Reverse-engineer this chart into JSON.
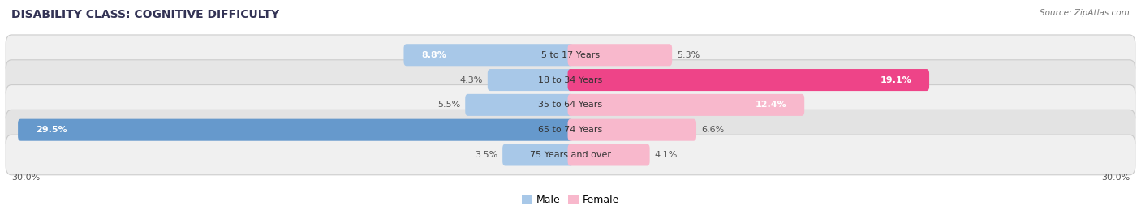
{
  "title": "DISABILITY CLASS: COGNITIVE DIFFICULTY",
  "source": "Source: ZipAtlas.com",
  "categories": [
    "5 to 17 Years",
    "18 to 34 Years",
    "35 to 64 Years",
    "65 to 74 Years",
    "75 Years and over"
  ],
  "male_values": [
    8.8,
    4.3,
    5.5,
    29.5,
    3.5
  ],
  "female_values": [
    5.3,
    19.1,
    12.4,
    6.6,
    4.1
  ],
  "max_val": 30.0,
  "male_color_light": "#a8c8e8",
  "male_color_dark": "#6699cc",
  "female_color_light": "#f8b8cc",
  "female_color_dark": "#ee4488",
  "row_bg_odd": "#efefef",
  "row_bg_even": "#e4e4e4",
  "axis_label_left": "30.0%",
  "axis_label_right": "30.0%",
  "title_fontsize": 10,
  "label_fontsize": 8,
  "category_fontsize": 8
}
